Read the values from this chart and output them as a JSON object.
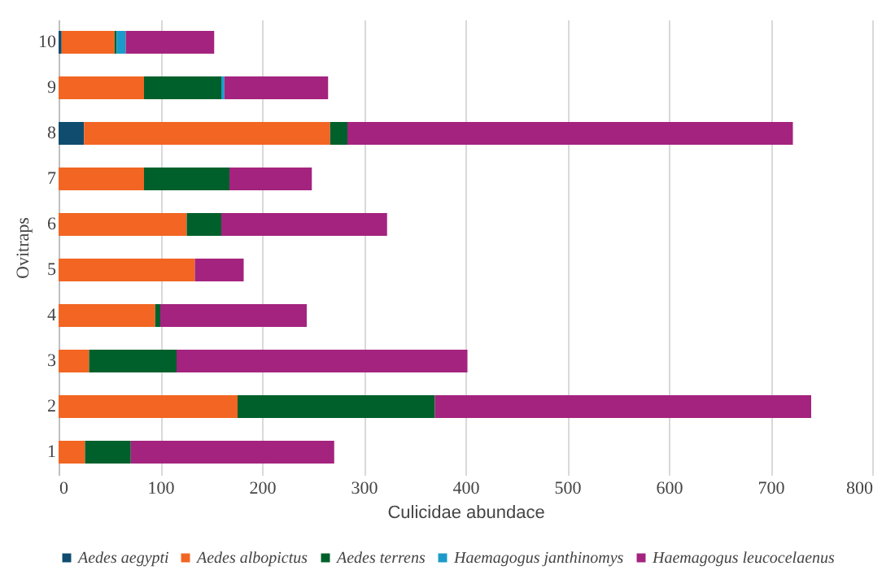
{
  "chart_data": {
    "type": "bar",
    "orientation": "horizontal",
    "stacked": true,
    "xlabel": "Culicidae abundace",
    "ylabel": "Ovitraps",
    "categories": [
      "10",
      "9",
      "8",
      "7",
      "6",
      "5",
      "4",
      "3",
      "2",
      "1"
    ],
    "series": [
      {
        "name": "Aedes aegypti",
        "color": "#0f4c6e",
        "values": [
          3,
          null,
          25,
          null,
          null,
          null,
          null,
          null,
          null,
          null
        ]
      },
      {
        "name": "Aedes albopictus",
        "color": "#f26522",
        "values": [
          52,
          84,
          242,
          84,
          126,
          134,
          95,
          30,
          176,
          26
        ]
      },
      {
        "name": "Aedes terrens",
        "color": "#00602b",
        "values": [
          2,
          76,
          17,
          84,
          34,
          null,
          5,
          86,
          194,
          45
        ]
      },
      {
        "name": "Haemagogus janthinomys",
        "color": "#1a9bc9",
        "values": [
          9,
          3,
          null,
          null,
          null,
          null,
          null,
          null,
          null,
          null
        ]
      },
      {
        "name": "Haemagogus leucocelaenus",
        "color": "#a4237e",
        "values": [
          87,
          102,
          438,
          81,
          163,
          48,
          144,
          286,
          370,
          200
        ]
      }
    ],
    "xlim": [
      0,
      800
    ],
    "xticks": [
      0,
      100,
      200,
      300,
      400,
      500,
      600,
      700,
      800
    ],
    "grid": "x",
    "legend": "bottom"
  }
}
